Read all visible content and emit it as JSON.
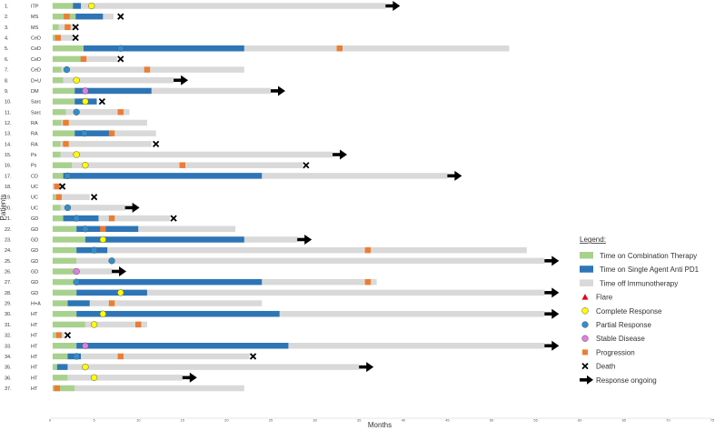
{
  "chart_data": {
    "type": "swimmer",
    "xlabel": "Months",
    "ylabel": "Patients",
    "xlim": [
      0,
      75
    ],
    "xticks": [
      0,
      5,
      10,
      15,
      20,
      25,
      30,
      35,
      40,
      45,
      50,
      55,
      60,
      65,
      70,
      75
    ],
    "colors": {
      "combo": "#a9d18e",
      "single": "#2e75b6",
      "off": "#d9d9d9",
      "flare": "#e3001b",
      "complete": "#ffff00",
      "partial": "#2e8fcf",
      "stable": "#e07fe0",
      "progression": "#ed7d31",
      "death": "#000000",
      "arrow": "#000000"
    },
    "legend": {
      "title": "Legend:",
      "items": [
        {
          "key": "combo",
          "label": "Time on Combination Therapy",
          "shape": "bar"
        },
        {
          "key": "single",
          "label": "Time on Single Agent Anti PD1",
          "shape": "bar"
        },
        {
          "key": "off",
          "label": "Time off Immunotherapy",
          "shape": "bar"
        },
        {
          "key": "flare",
          "label": "Flare",
          "shape": "triangle"
        },
        {
          "key": "complete",
          "label": "Complete Response",
          "shape": "circle"
        },
        {
          "key": "partial",
          "label": "Partial Response",
          "shape": "circle"
        },
        {
          "key": "stable",
          "label": "Stable Disease",
          "shape": "circle"
        },
        {
          "key": "progression",
          "label": "Progression",
          "shape": "square"
        },
        {
          "key": "death",
          "label": "Death",
          "shape": "x"
        },
        {
          "key": "arrow",
          "label": "Response ongoing",
          "shape": "arrow"
        }
      ]
    },
    "patients": [
      {
        "label": "1.",
        "dx": "ITP",
        "combo": [
          0.3,
          2.6
        ],
        "single": [
          2.6,
          3.5
        ],
        "off": [
          3.5,
          38
        ],
        "events": [
          {
            "type": "complete",
            "t": 4.7
          }
        ],
        "end": "arrow"
      },
      {
        "label": "2.",
        "dx": "MS",
        "combo": [
          0.3,
          2.9
        ],
        "single": [
          2.9,
          6
        ],
        "off": [
          6,
          7.2
        ],
        "events": [
          {
            "type": "progression",
            "t": 1.9
          }
        ],
        "end": "death",
        "end_t": 8
      },
      {
        "label": "3.",
        "dx": "MS",
        "combo": [
          0.3,
          1.0
        ],
        "single": null,
        "off": [
          1.0,
          2.8
        ],
        "events": [
          {
            "type": "progression",
            "t": 2.0
          }
        ],
        "end": "death",
        "end_t": 2.9
      },
      {
        "label": "4.",
        "dx": "CeD",
        "combo": [
          0.3,
          0.6
        ],
        "single": null,
        "off": [
          0.6,
          2.6
        ],
        "events": [
          {
            "type": "progression",
            "t": 0.9
          }
        ],
        "end": "death",
        "end_t": 2.9
      },
      {
        "label": "5.",
        "dx": "CeD",
        "combo": [
          0.3,
          3.8
        ],
        "single": [
          3.8,
          22
        ],
        "off": [
          22,
          52
        ],
        "events": [
          {
            "type": "partial",
            "t": 8
          },
          {
            "type": "progression",
            "t": 32.8
          }
        ],
        "end": "none"
      },
      {
        "label": "6.",
        "dx": "CeD",
        "combo": [
          0.3,
          3.5
        ],
        "single": null,
        "off": [
          3.5,
          7.6
        ],
        "events": [
          {
            "type": "progression",
            "t": 3.8
          }
        ],
        "end": "death",
        "end_t": 8
      },
      {
        "label": "7.",
        "dx": "CeD",
        "combo": [
          0.3,
          1.3
        ],
        "single": null,
        "off": [
          1.3,
          22
        ],
        "events": [
          {
            "type": "partial",
            "t": 1.9
          },
          {
            "type": "progression",
            "t": 11
          }
        ],
        "end": "none"
      },
      {
        "label": "8.",
        "dx": "D+U",
        "combo": [
          0.3,
          1.5
        ],
        "single": null,
        "off": [
          1.5,
          14
        ],
        "events": [
          {
            "type": "complete",
            "t": 3
          }
        ],
        "end": "arrow"
      },
      {
        "label": "9.",
        "dx": "DM",
        "combo": [
          0.3,
          2.8
        ],
        "single": [
          2.8,
          11.5
        ],
        "off": [
          11.5,
          25
        ],
        "events": [
          {
            "type": "stable",
            "t": 4
          }
        ],
        "end": "arrow"
      },
      {
        "label": "10.",
        "dx": "Sarc",
        "combo": [
          0.3,
          2.8
        ],
        "single": [
          2.8,
          5.3
        ],
        "off": null,
        "events": [
          {
            "type": "complete",
            "t": 4
          }
        ],
        "end": "death",
        "end_t": 5.9
      },
      {
        "label": "11.",
        "dx": "Sarc",
        "combo": [
          0.3,
          1.8
        ],
        "single": null,
        "off": [
          1.8,
          9
        ],
        "events": [
          {
            "type": "partial",
            "t": 3
          },
          {
            "type": "progression",
            "t": 8
          }
        ],
        "end": "none"
      },
      {
        "label": "12.",
        "dx": "RA",
        "combo": [
          0.3,
          1.3
        ],
        "single": null,
        "off": [
          1.3,
          11
        ],
        "events": [
          {
            "type": "progression",
            "t": 1.8
          }
        ],
        "end": "none"
      },
      {
        "label": "13.",
        "dx": "RA",
        "combo": [
          0.3,
          2.8
        ],
        "single": [
          2.8,
          7
        ],
        "off": [
          7,
          12
        ],
        "events": [
          {
            "type": "partial",
            "t": 3.9
          },
          {
            "type": "progression",
            "t": 7
          }
        ],
        "end": "none"
      },
      {
        "label": "14.",
        "dx": "RA",
        "combo": [
          0.3,
          1.2
        ],
        "single": null,
        "off": [
          1.2,
          11.5
        ],
        "events": [
          {
            "type": "progression",
            "t": 1.8
          }
        ],
        "end": "death",
        "end_t": 12
      },
      {
        "label": "15.",
        "dx": "Ps",
        "combo": [
          0.3,
          1.2
        ],
        "single": null,
        "off": [
          1.2,
          32
        ],
        "events": [
          {
            "type": "complete",
            "t": 3
          }
        ],
        "end": "arrow"
      },
      {
        "label": "16.",
        "dx": "Ps",
        "combo": [
          0.3,
          2.5
        ],
        "single": null,
        "off": [
          2.5,
          28.6
        ],
        "events": [
          {
            "type": "complete",
            "t": 4
          },
          {
            "type": "progression",
            "t": 15
          }
        ],
        "end": "death",
        "end_t": 29
      },
      {
        "label": "17.",
        "dx": "CD",
        "combo": [
          0.3,
          1.5
        ],
        "single": [
          1.5,
          24
        ],
        "off": [
          24,
          45
        ],
        "events": [
          {
            "type": "partial",
            "t": 2
          }
        ],
        "end": "arrow"
      },
      {
        "label": "18.",
        "dx": "UC",
        "combo": null,
        "single": null,
        "off": [
          0.3,
          1.0
        ],
        "events": [
          {
            "type": "progression",
            "t": 0.8
          }
        ],
        "end": "death",
        "end_t": 1.4
      },
      {
        "label": "19.",
        "dx": "UC",
        "combo": [
          0.3,
          0.6
        ],
        "single": null,
        "off": [
          0.6,
          4.5
        ],
        "events": [
          {
            "type": "progression",
            "t": 1.0
          }
        ],
        "end": "death",
        "end_t": 5
      },
      {
        "label": "20.",
        "dx": "UC",
        "combo": [
          0.3,
          1.2
        ],
        "single": null,
        "off": [
          1.2,
          8.5
        ],
        "events": [
          {
            "type": "partial",
            "t": 2
          }
        ],
        "end": "arrow"
      },
      {
        "label": "21.",
        "dx": "GD",
        "combo": [
          0.3,
          1.5
        ],
        "single": [
          1.5,
          5.5
        ],
        "off": [
          5.5,
          13.6
        ],
        "events": [
          {
            "type": "partial",
            "t": 3
          },
          {
            "type": "progression",
            "t": 7
          }
        ],
        "end": "death",
        "end_t": 14
      },
      {
        "label": "22.",
        "dx": "GD",
        "combo": [
          0.3,
          3.0
        ],
        "single": [
          3.0,
          10
        ],
        "off": [
          10,
          21
        ],
        "events": [
          {
            "type": "partial",
            "t": 4
          },
          {
            "type": "progression",
            "t": 6
          }
        ],
        "end": "none"
      },
      {
        "label": "23.",
        "dx": "GD",
        "combo": [
          0.3,
          4.0
        ],
        "single": [
          4.0,
          22
        ],
        "off": [
          22,
          28
        ],
        "events": [
          {
            "type": "complete",
            "t": 6
          }
        ],
        "end": "arrow"
      },
      {
        "label": "24.",
        "dx": "GD",
        "combo": [
          0.3,
          3.0
        ],
        "single": [
          3.0,
          6.5
        ],
        "off": [
          6.5,
          54
        ],
        "events": [
          {
            "type": "partial",
            "t": 5
          },
          {
            "type": "progression",
            "t": 36
          }
        ],
        "end": "none"
      },
      {
        "label": "25.",
        "dx": "GD",
        "combo": [
          0.3,
          3.0
        ],
        "single": null,
        "off": [
          3.0,
          56
        ],
        "events": [
          {
            "type": "partial",
            "t": 7
          }
        ],
        "end": "arrow"
      },
      {
        "label": "26.",
        "dx": "GD",
        "combo": [
          0.3,
          3.0
        ],
        "single": null,
        "off": [
          3.0,
          7.0
        ],
        "events": [
          {
            "type": "stable",
            "t": 3
          }
        ],
        "end": "arrow"
      },
      {
        "label": "27.",
        "dx": "GD",
        "combo": [
          0.3,
          3.0
        ],
        "single": [
          3.0,
          24
        ],
        "off": [
          24,
          37
        ],
        "events": [
          {
            "type": "partial",
            "t": 3
          },
          {
            "type": "progression",
            "t": 36
          }
        ],
        "end": "none"
      },
      {
        "label": "28.",
        "dx": "GD",
        "combo": [
          0.3,
          3.0
        ],
        "single": [
          3.0,
          11
        ],
        "off": [
          11,
          56
        ],
        "events": [
          {
            "type": "complete",
            "t": 8
          }
        ],
        "end": "arrow"
      },
      {
        "label": "29.",
        "dx": "H+A",
        "combo": [
          0.3,
          2.0
        ],
        "single": [
          2.0,
          4.5
        ],
        "off": [
          4.5,
          24
        ],
        "events": [
          {
            "type": "progression",
            "t": 7
          }
        ],
        "end": "none"
      },
      {
        "label": "30.",
        "dx": "HT",
        "combo": [
          0.3,
          3.0
        ],
        "single": [
          3.0,
          26
        ],
        "off": [
          26,
          56
        ],
        "events": [
          {
            "type": "complete",
            "t": 6
          }
        ],
        "end": "arrow"
      },
      {
        "label": "31.",
        "dx": "HT",
        "combo": [
          0.3,
          4.0
        ],
        "single": null,
        "off": [
          4.0,
          11
        ],
        "events": [
          {
            "type": "complete",
            "t": 5
          },
          {
            "type": "progression",
            "t": 10
          }
        ],
        "end": "none"
      },
      {
        "label": "32.",
        "dx": "HT",
        "combo": [
          0.3,
          0.6
        ],
        "single": null,
        "off": [
          0.6,
          1.6
        ],
        "events": [
          {
            "type": "progression",
            "t": 1.0
          }
        ],
        "end": "death",
        "end_t": 2
      },
      {
        "label": "33.",
        "dx": "HT",
        "combo": [
          0.3,
          3.0
        ],
        "single": [
          3.0,
          27
        ],
        "off": [
          27,
          56
        ],
        "events": [
          {
            "type": "stable",
            "t": 4
          }
        ],
        "end": "arrow"
      },
      {
        "label": "34.",
        "dx": "HT",
        "combo": [
          0.3,
          2.0
        ],
        "single": [
          2.0,
          3.5
        ],
        "off": [
          3.5,
          22.6
        ],
        "events": [
          {
            "type": "partial",
            "t": 3
          },
          {
            "type": "progression",
            "t": 8
          }
        ],
        "end": "death",
        "end_t": 23
      },
      {
        "label": "35.",
        "dx": "HT",
        "combo": [
          0.3,
          0.8
        ],
        "single": [
          0.8,
          2.0
        ],
        "off": [
          2.0,
          35
        ],
        "events": [
          {
            "type": "complete",
            "t": 4
          }
        ],
        "end": "arrow"
      },
      {
        "label": "36.",
        "dx": "HT",
        "combo": [
          0.3,
          2.0
        ],
        "single": null,
        "off": [
          2.0,
          15
        ],
        "events": [
          {
            "type": "complete",
            "t": 5
          }
        ],
        "end": "arrow"
      },
      {
        "label": "37.",
        "dx": "HT",
        "combo": [
          0.3,
          2.8
        ],
        "single": null,
        "off": [
          2.8,
          22
        ],
        "events": [
          {
            "type": "progression",
            "t": 0.8
          }
        ],
        "end": "none"
      }
    ]
  }
}
